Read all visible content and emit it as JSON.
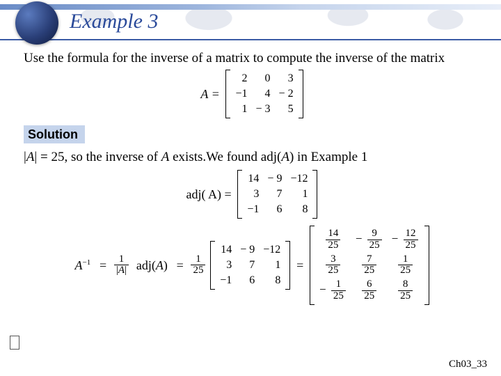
{
  "title_color": "#2a4a9a",
  "solution_bg": "#c5d4ec",
  "title": "Example 3",
  "problem": "Use the formula for the inverse of a matrix to compute the inverse of the matrix",
  "solution_label": "Solution",
  "explain_pre": "|",
  "explain_var": "A",
  "explain_mid": "| = 25, so the inverse of ",
  "explain_var2": "A",
  "explain_post": " exists.We found adj(",
  "explain_var3": "A",
  "explain_end": ") in Example 1",
  "footer": "Ch03_33",
  "matrixA": {
    "label": "A =",
    "rows": [
      [
        "2",
        "0",
        "3"
      ],
      [
        "−1",
        "4",
        "− 2"
      ],
      [
        "1",
        "− 3",
        "5"
      ]
    ]
  },
  "adjA": {
    "label": "adj( A) =",
    "rows": [
      [
        "14",
        "− 9",
        "−12"
      ],
      [
        "3",
        "7",
        "1"
      ],
      [
        "−1",
        "6",
        "8"
      ]
    ]
  },
  "inverse": {
    "lhs_var": "A",
    "lhs_exp": "−1",
    "eq": " = ",
    "frac1_num": "1",
    "frac1_den_pre": "|",
    "frac1_den_var": "A",
    "frac1_den_post": "|",
    "adj_label": "adj(",
    "adj_var": "A",
    "adj_label_post": ")",
    "frac2_num": "1",
    "frac2_den": "25",
    "matrix_mid_rows": [
      [
        "14",
        "− 9",
        "−12"
      ],
      [
        "3",
        "7",
        "1"
      ],
      [
        "−1",
        "6",
        "8"
      ]
    ],
    "result_rows": [
      [
        {
          "n": "14",
          "d": "25",
          "s": ""
        },
        {
          "n": "9",
          "d": "25",
          "s": "−"
        },
        {
          "n": "12",
          "d": "25",
          "s": "−"
        }
      ],
      [
        {
          "n": "3",
          "d": "25",
          "s": ""
        },
        {
          "n": "7",
          "d": "25",
          "s": ""
        },
        {
          "n": "1",
          "d": "25",
          "s": ""
        }
      ],
      [
        {
          "n": "1",
          "d": "25",
          "s": "−"
        },
        {
          "n": "6",
          "d": "25",
          "s": ""
        },
        {
          "n": "8",
          "d": "25",
          "s": ""
        }
      ]
    ]
  }
}
